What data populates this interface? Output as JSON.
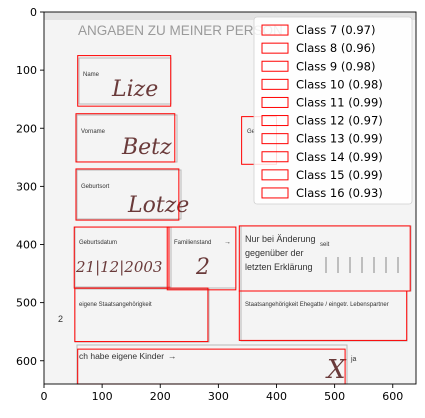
{
  "chart_data": {
    "type": "scatter",
    "subtype": "image-with-detection-boxes",
    "xlim": [
      0,
      640
    ],
    "ylim": [
      640,
      0
    ],
    "x_ticks": [
      0,
      100,
      200,
      300,
      400,
      500,
      600
    ],
    "y_ticks": [
      0,
      100,
      200,
      300,
      400,
      500,
      600
    ],
    "grid": false,
    "legend_position": "top-right",
    "box_color": "#ff0000",
    "boxes": [
      {
        "x0": 58,
        "y0": 75,
        "x1": 218,
        "y1": 162
      },
      {
        "x0": 55,
        "y0": 175,
        "x1": 225,
        "y1": 258
      },
      {
        "x0": 55,
        "y0": 270,
        "x1": 232,
        "y1": 358
      },
      {
        "x0": 52,
        "y0": 370,
        "x1": 215,
        "y1": 475
      },
      {
        "x0": 212,
        "y0": 370,
        "x1": 330,
        "y1": 478
      },
      {
        "x0": 336,
        "y0": 368,
        "x1": 630,
        "y1": 480
      },
      {
        "x0": 53,
        "y0": 475,
        "x1": 282,
        "y1": 567
      },
      {
        "x0": 336,
        "y0": 480,
        "x1": 624,
        "y1": 565
      },
      {
        "x0": 58,
        "y0": 580,
        "x1": 518,
        "y1": 640
      },
      {
        "x0": 340,
        "y0": 180,
        "x1": 400,
        "y1": 262
      }
    ],
    "legend": [
      "Class 7 (0.97)",
      "Class 8 (0.96)",
      "Class 9 (0.98)",
      "Class 10 (0.98)",
      "Class 11 (0.99)",
      "Class 12 (0.97)",
      "Class 13 (0.99)",
      "Class 14 (0.99)",
      "Class 15 (0.99)",
      "Class 16 (0.93)"
    ]
  },
  "image": {
    "heading": "ANGABEN ZU MEINER PERSON",
    "fields": [
      {
        "label": "Name",
        "value": "Lize"
      },
      {
        "label": "Vorname",
        "value": "Betz"
      },
      {
        "label": "Geburtsort",
        "value": "Lotze"
      },
      {
        "label": "Geburtsdatum",
        "value": "21|12|2003"
      },
      {
        "label": "Familienstand",
        "value": "2"
      }
    ],
    "note": [
      "Nur bei Änderung",
      "gegenüber der",
      "letzten Erklärung"
    ],
    "seit": "seit",
    "nationality": "eigene Staatsangehörigkeit",
    "partner_nationality": "Staatsangehörigkeit Ehegatte / eingetr. Lebenspartner",
    "children": "ch habe eigene Kinder",
    "ja": "ja",
    "cross": "X",
    "side_mark": "2",
    "ge_fragment": "Ge"
  }
}
